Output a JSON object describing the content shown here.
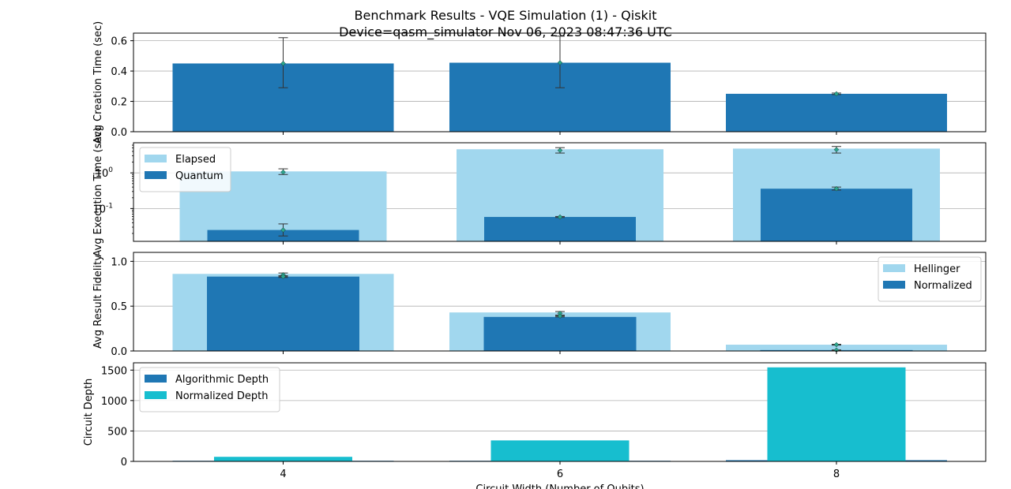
{
  "figure": {
    "title_line1": "Benchmark Results - VQE Simulation (1) - Qiskit",
    "title_line2": "Device=qasm_simulator  Nov 06, 2023 08:47:36 UTC",
    "xlabel": "Circuit Width (Number of Qubits)"
  },
  "colors": {
    "dark_blue": "#1f77b4",
    "light_blue": "#a1d7ee",
    "cyan": "#17becf",
    "grid": "#b0b0b0",
    "marker": "#2ca58d"
  },
  "chart_data": [
    {
      "type": "bar",
      "id": "creation",
      "categories": [
        "4",
        "6",
        "8"
      ],
      "ylabel": "Avg Creation Time (sec)",
      "ylim": [
        0,
        0.65
      ],
      "yticks": [
        0.0,
        0.2,
        0.4,
        0.6
      ],
      "ytick_labels": [
        "0.0",
        "0.2",
        "0.4",
        "0.6"
      ],
      "grid": true,
      "series": [
        {
          "values": [
            0.45,
            0.455,
            0.25
          ],
          "err_low": [
            0.29,
            0.29,
            0.245
          ],
          "err_high": [
            0.62,
            0.63,
            0.255
          ]
        }
      ]
    },
    {
      "type": "bar",
      "id": "execution",
      "scale": "log",
      "categories": [
        "4",
        "6",
        "8"
      ],
      "ylabel": "Avg Execution Time (sec)",
      "ylim": [
        0.012,
        7
      ],
      "yticks": [
        1,
        0.1
      ],
      "ytick_labels": [
        "10^0",
        "10^-1"
      ],
      "legend": "top-left",
      "grid": true,
      "series": [
        {
          "name": "Elapsed",
          "values": [
            1.1,
            4.6,
            4.8
          ],
          "marker": [
            1.05,
            4.3,
            4.5
          ],
          "err_low": [
            0.9,
            3.6,
            3.6
          ],
          "err_high": [
            1.3,
            5.1,
            5.5
          ]
        },
        {
          "name": "Quantum",
          "values": [
            0.025,
            0.058,
            0.36
          ],
          "marker": [
            0.025,
            0.058,
            0.36
          ],
          "err_low": [
            0.017,
            0.056,
            0.33
          ],
          "err_high": [
            0.037,
            0.06,
            0.4
          ]
        }
      ]
    },
    {
      "type": "bar",
      "id": "fidelity",
      "categories": [
        "4",
        "6",
        "8"
      ],
      "ylabel": "Avg Result Fidelity",
      "ylim": [
        0,
        1.1
      ],
      "yticks": [
        0.0,
        0.5,
        1.0
      ],
      "ytick_labels": [
        "0.0",
        "0.5",
        "1.0"
      ],
      "legend": "top-right",
      "grid": true,
      "series": [
        {
          "name": "Hellinger",
          "values": [
            0.86,
            0.43,
            0.07
          ],
          "marker": [
            0.85,
            0.42,
            0.07
          ],
          "err_low": [
            0.83,
            0.39,
            0.065
          ],
          "err_high": [
            0.87,
            0.44,
            0.075
          ]
        },
        {
          "name": "Normalized",
          "values": [
            0.83,
            0.38,
            0.01
          ],
          "marker": [
            0.83,
            0.39,
            0.01
          ],
          "err_low": [
            0.82,
            0.38,
            0.008
          ],
          "err_high": [
            0.84,
            0.4,
            0.012
          ]
        }
      ]
    },
    {
      "type": "bar",
      "id": "depth",
      "categories": [
        "4",
        "6",
        "8"
      ],
      "ylabel": "Circuit Depth",
      "ylim": [
        0,
        1620
      ],
      "yticks": [
        0,
        500,
        1000,
        1500
      ],
      "ytick_labels": [
        "0",
        "500",
        "1000",
        "1500"
      ],
      "legend": "top-left",
      "grid": true,
      "series": [
        {
          "name": "Algorithmic Depth",
          "values": [
            10,
            10,
            20
          ]
        },
        {
          "name": "Normalized Depth",
          "values": [
            75,
            345,
            1545
          ]
        }
      ]
    }
  ]
}
